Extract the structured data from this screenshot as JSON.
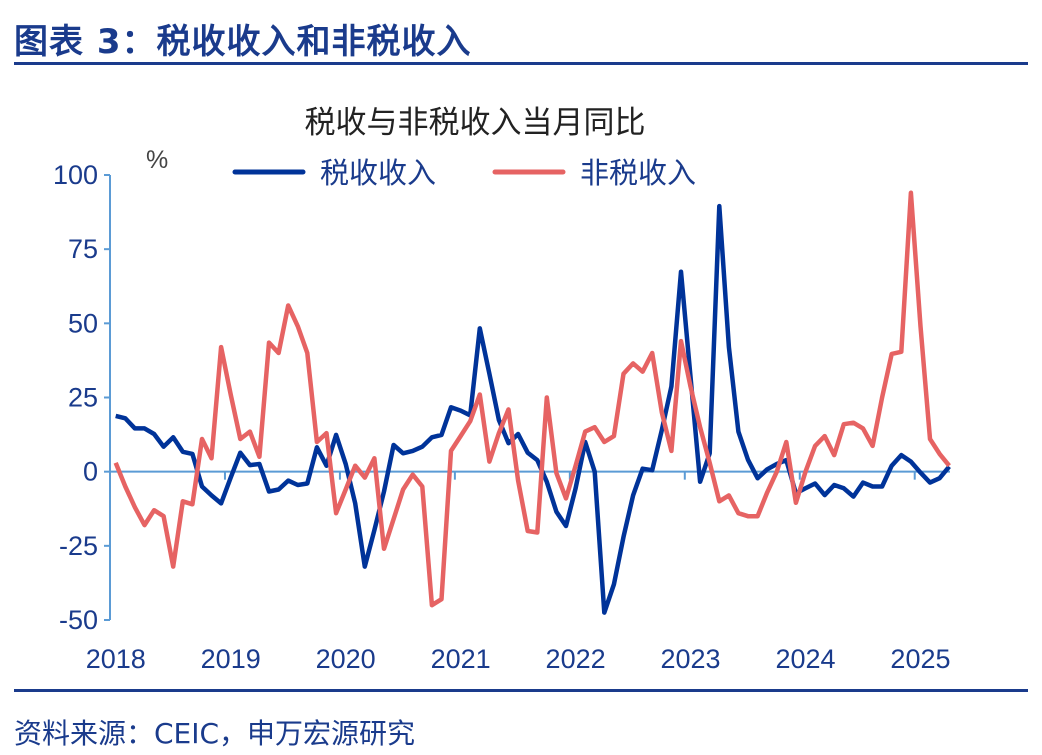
{
  "header": {
    "figure_title": "图表 3：税收收入和非税收入"
  },
  "footer": {
    "source": "资料来源：CEIC，申万宏源研究"
  },
  "colors": {
    "tax": "#003399",
    "nontax": "#E66363",
    "axis": "#5B9BD5",
    "text": "#1a3b8c"
  },
  "chart_data": {
    "type": "line",
    "title": "税收与非税收入当月同比",
    "ylabel": "%",
    "xlabel": "",
    "ylim": [
      -50,
      100
    ],
    "yticks": [
      100,
      75,
      50,
      25,
      0,
      -25,
      -50
    ],
    "ytick_labels": [
      "100",
      "75",
      "50",
      "25",
      "0",
      "-25",
      "-50"
    ],
    "x_start": "2018-01",
    "x_end": "2025-04",
    "frequency": "monthly",
    "xtick_labels": [
      "2018",
      "2019",
      "2020",
      "2021",
      "2022",
      "2023",
      "2024",
      "2025"
    ],
    "legend_position": "top",
    "grid": false,
    "series": [
      {
        "name": "税收收入",
        "color": "#003399",
        "values": [
          18.8,
          18,
          14.6,
          14.6,
          12.7,
          8.4,
          11.6,
          6.7,
          6,
          -5,
          -8,
          -10.7,
          -2,
          6.4,
          2.2,
          2.6,
          -6.7,
          -6,
          -3,
          -4.5,
          -4,
          8.2,
          2,
          12.4,
          2.6,
          -10.7,
          -32,
          -19.7,
          -6.7,
          9,
          6.2,
          7,
          8.4,
          11.6,
          12.4,
          21.7,
          20.6,
          19,
          48.3,
          33,
          17.4,
          9.6,
          12.7,
          6.4,
          3.9,
          -3.4,
          -13.5,
          -18.3,
          -5.6,
          10,
          0,
          -47.5,
          -38,
          -22,
          -8,
          1,
          0.5,
          14,
          28.7,
          67.4,
          32,
          -3.4,
          6.2,
          89.5,
          42,
          13.5,
          4,
          -2.2,
          0.8,
          2.6,
          3.9,
          -7.3,
          -5.6,
          -4,
          -7.9,
          -4.5,
          -5.6,
          -8.4,
          -3.7,
          -5,
          -5,
          2,
          5.6,
          3.4,
          -0.3,
          -3.7,
          -2.2,
          1.7
        ]
      },
      {
        "name": "非税收入",
        "color": "#E66363",
        "values": [
          3,
          -5,
          -12,
          -18,
          -13,
          -15,
          -32,
          -10,
          -11,
          11,
          4.5,
          42,
          26,
          11,
          13.5,
          5,
          43.5,
          40,
          56,
          49,
          40,
          10,
          13,
          -14,
          -6,
          2,
          -2,
          4.5,
          -26,
          -16,
          -6,
          -1,
          -5,
          -45,
          -43,
          7,
          12,
          17,
          26,
          3.4,
          13,
          21,
          -3,
          -20,
          -20.5,
          25,
          -0.5,
          -9,
          2,
          13.5,
          15,
          10,
          12,
          33,
          36.5,
          33.7,
          40,
          20,
          7,
          44,
          28.7,
          15,
          3,
          -10,
          -8,
          -14,
          -15,
          -15,
          -7,
          0,
          10,
          -10.5,
          0,
          8.7,
          12,
          5.6,
          16,
          16.5,
          14.6,
          8.7,
          25,
          39.7,
          40.4,
          94,
          49,
          11,
          6,
          2
        ]
      }
    ]
  }
}
